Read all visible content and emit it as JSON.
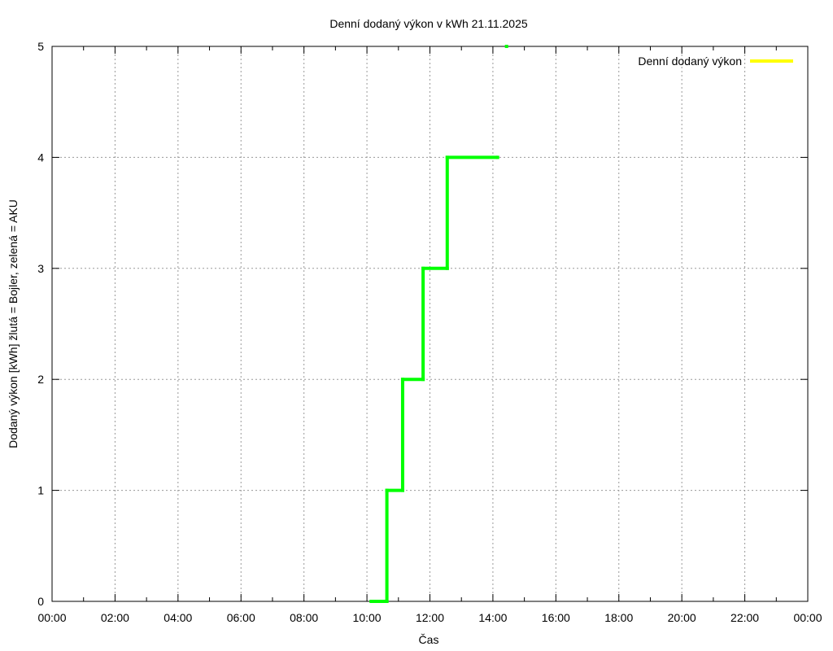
{
  "chart_data": {
    "type": "line",
    "title": "Denní dodaný výkon v kWh 21.11.2025",
    "xlabel": "Čas",
    "ylabel": "Dodaný výkon [kWh]  žlutá = Bojler, zelená = AKU",
    "xlim": [
      "00:00",
      "24:00"
    ],
    "ylim": [
      0,
      5
    ],
    "x_ticks": [
      "00:00",
      "02:00",
      "04:00",
      "06:00",
      "08:00",
      "10:00",
      "12:00",
      "14:00",
      "16:00",
      "18:00",
      "20:00",
      "22:00",
      "00:00"
    ],
    "y_ticks": [
      "0",
      "1",
      "2",
      "3",
      "4",
      "5"
    ],
    "grid": true,
    "legend_position": "top-right",
    "legend": [
      {
        "name": "Denní dodaný výkon",
        "color": "#ffff00"
      }
    ],
    "series": [
      {
        "color": "#00ff00",
        "step": true,
        "points": [
          [
            "10:08",
            0
          ],
          [
            "10:38",
            0
          ],
          [
            "10:38",
            1
          ],
          [
            "11:08",
            1
          ],
          [
            "11:08",
            2
          ],
          [
            "11:47",
            2
          ],
          [
            "11:47",
            3
          ],
          [
            "12:33",
            3
          ],
          [
            "12:33",
            4
          ],
          [
            "14:09",
            4
          ]
        ]
      },
      {
        "color": "#00ff00",
        "points": [
          [
            "14:26",
            5
          ]
        ]
      }
    ]
  }
}
